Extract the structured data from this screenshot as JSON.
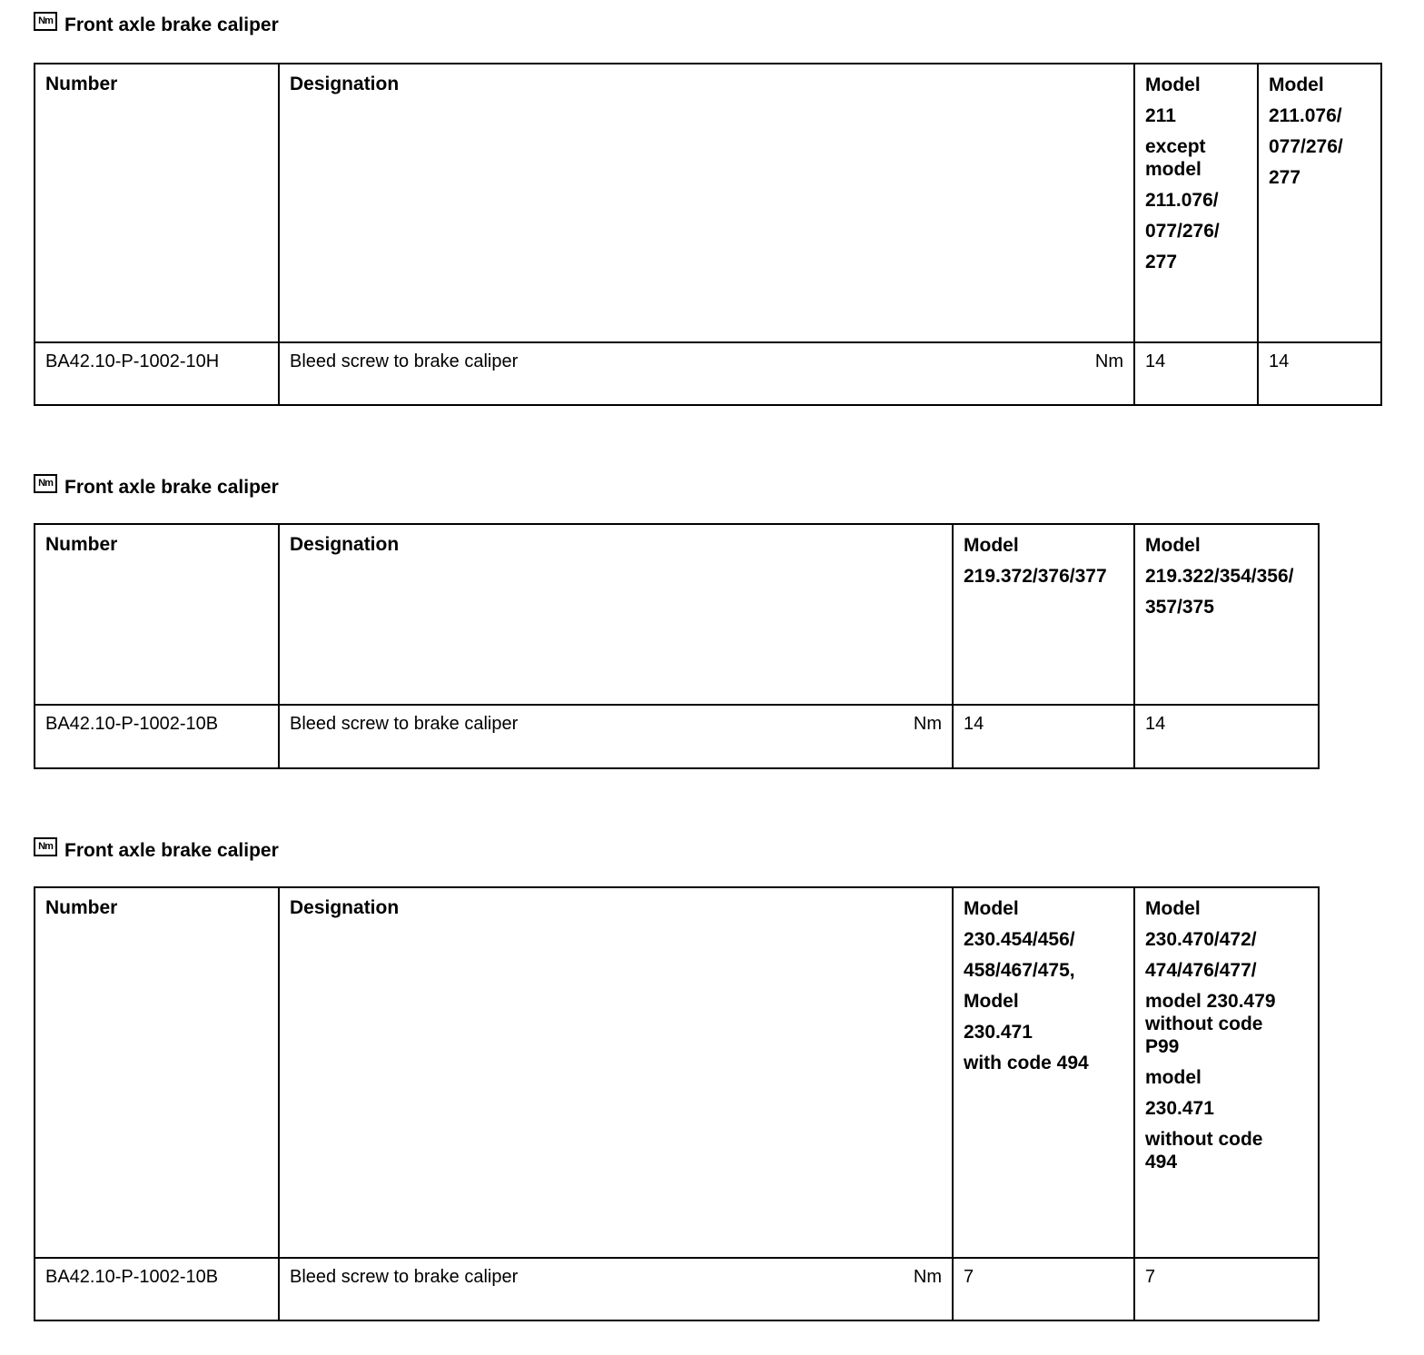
{
  "sections": [
    {
      "title": "Front axle brake caliper",
      "icon": "Nm",
      "headers": {
        "number": "Number",
        "designation": "Designation",
        "models": [
          [
            [
              "Model"
            ],
            [
              "211"
            ],
            [
              "except",
              "model"
            ],
            [
              "211.076/"
            ],
            [
              "077/276/"
            ],
            [
              "277"
            ]
          ],
          [
            [
              "Model"
            ],
            [
              "211.076/"
            ],
            [
              "077/276/"
            ],
            [
              "277"
            ]
          ]
        ]
      },
      "rows": [
        {
          "number": "BA42.10-P-1002-10H",
          "designation": "Bleed screw to brake caliper",
          "unit": "Nm",
          "values": [
            "14",
            "14"
          ]
        }
      ]
    },
    {
      "title": "Front axle brake caliper",
      "icon": "Nm",
      "headers": {
        "number": "Number",
        "designation": "Designation",
        "models": [
          [
            [
              "Model"
            ],
            [
              "219.372/376/377"
            ]
          ],
          [
            [
              "Model"
            ],
            [
              "219.322/354/356/"
            ],
            [
              "357/375"
            ]
          ]
        ]
      },
      "rows": [
        {
          "number": "BA42.10-P-1002-10B",
          "designation": "Bleed screw to brake caliper",
          "unit": "Nm",
          "values": [
            "14",
            "14"
          ]
        }
      ]
    },
    {
      "title": "Front axle brake caliper",
      "icon": "Nm",
      "headers": {
        "number": "Number",
        "designation": "Designation",
        "models": [
          [
            [
              "Model"
            ],
            [
              "230.454/456/"
            ],
            [
              "458/467/475,"
            ],
            [
              "Model"
            ],
            [
              "230.471"
            ],
            [
              "with code 494"
            ]
          ],
          [
            [
              "Model"
            ],
            [
              "230.470/472/"
            ],
            [
              "474/476/477/"
            ],
            [
              "model 230.479",
              "without code",
              "P99"
            ],
            [
              "model"
            ],
            [
              "230.471"
            ],
            [
              "without code",
              "494"
            ]
          ]
        ]
      },
      "rows": [
        {
          "number": "BA42.10-P-1002-10B",
          "designation": "Bleed screw to brake caliper",
          "unit": "Nm",
          "values": [
            "7",
            "7"
          ]
        }
      ]
    }
  ]
}
